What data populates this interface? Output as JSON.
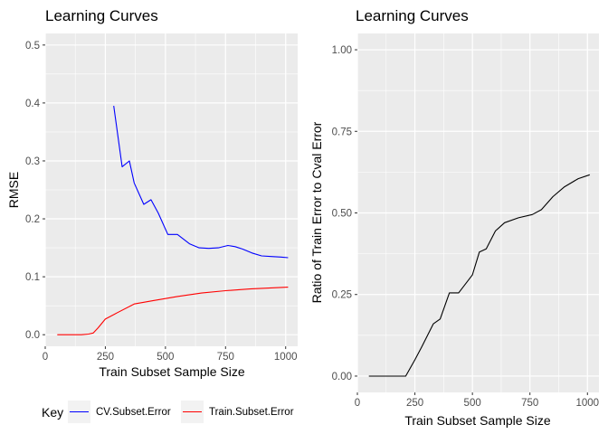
{
  "chart_data": [
    {
      "type": "line",
      "title": "Learning Curves",
      "xlabel": "Train Subset Sample Size",
      "ylabel": "RMSE",
      "xlim": [
        0,
        1050
      ],
      "ylim": [
        -0.02,
        0.52
      ],
      "xticks": [
        0,
        250,
        500,
        750,
        1000
      ],
      "yticks": [
        0.0,
        0.1,
        0.2,
        0.3,
        0.4,
        0.5
      ],
      "ytick_labels": [
        "0.0",
        "0.1",
        "0.2",
        "0.3",
        "0.4",
        "0.5"
      ],
      "grid": true,
      "legend": {
        "title": "Key",
        "position": "bottom",
        "entries": [
          "CV.Subset.Error",
          "Train.Subset.Error"
        ]
      },
      "series": [
        {
          "name": "CV.Subset.Error",
          "color": "#0000ff",
          "x": [
            285,
            320,
            350,
            370,
            410,
            440,
            470,
            510,
            550,
            600,
            640,
            680,
            720,
            760,
            790,
            820,
            860,
            900,
            940,
            980,
            1010
          ],
          "y": [
            0.395,
            0.29,
            0.3,
            0.262,
            0.225,
            0.233,
            0.21,
            0.173,
            0.173,
            0.157,
            0.15,
            0.149,
            0.15,
            0.154,
            0.152,
            0.148,
            0.141,
            0.136,
            0.135,
            0.134,
            0.133
          ]
        },
        {
          "name": "Train.Subset.Error",
          "color": "#ff0000",
          "x": [
            50,
            100,
            150,
            180,
            200,
            220,
            250,
            300,
            370,
            450,
            550,
            650,
            750,
            850,
            950,
            1010
          ],
          "y": [
            0.0,
            0.0,
            0.0,
            0.001,
            0.003,
            0.012,
            0.027,
            0.038,
            0.053,
            0.059,
            0.066,
            0.072,
            0.076,
            0.079,
            0.081,
            0.082
          ]
        }
      ]
    },
    {
      "type": "line",
      "title": "Learning Curves",
      "xlabel": "Train Subset Sample Size",
      "ylabel": "Ratio of Train Error to Cval Error",
      "xlim": [
        0,
        1050
      ],
      "ylim": [
        -0.05,
        1.05
      ],
      "xticks": [
        0,
        250,
        500,
        750,
        1000
      ],
      "yticks": [
        0.0,
        0.25,
        0.5,
        0.75,
        1.0
      ],
      "ytick_labels": [
        "0.00",
        "0.25",
        "0.50",
        "0.75",
        "1.00"
      ],
      "grid": true,
      "series": [
        {
          "color": "#000000",
          "x": [
            50,
            100,
            150,
            200,
            210,
            250,
            280,
            330,
            360,
            400,
            440,
            500,
            530,
            560,
            600,
            640,
            700,
            760,
            800,
            850,
            900,
            960,
            1010
          ],
          "y": [
            0.0,
            0.0,
            0.0,
            0.0,
            0.0,
            0.05,
            0.09,
            0.16,
            0.175,
            0.255,
            0.255,
            0.31,
            0.38,
            0.39,
            0.445,
            0.47,
            0.485,
            0.495,
            0.51,
            0.55,
            0.58,
            0.605,
            0.617
          ]
        }
      ]
    }
  ]
}
